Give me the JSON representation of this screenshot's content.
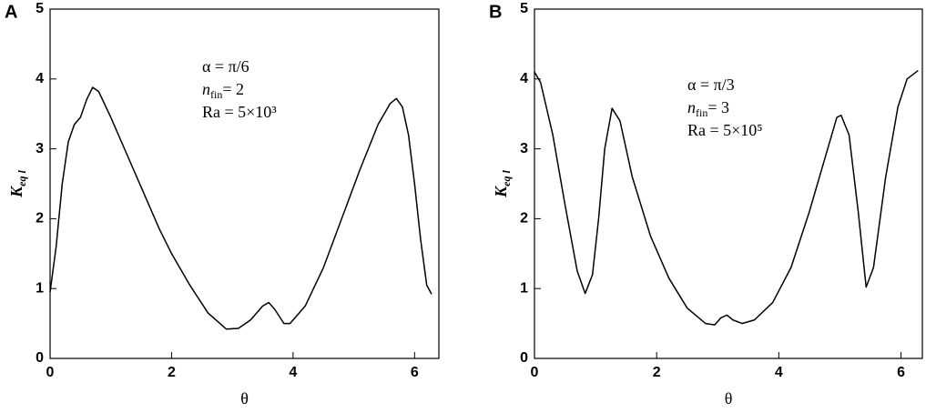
{
  "chart_data": [
    {
      "type": "line",
      "panel": "A",
      "color": "#000000",
      "annotations": [
        "α = π/6",
        {
          "main": "n",
          "sub": "fin",
          "rest": "= 2"
        },
        "Ra = 5×10³"
      ],
      "x_label": "θ",
      "y_label": {
        "main": "K",
        "sub": "eq l"
      },
      "x": [
        0,
        0.1,
        0.2,
        0.3,
        0.4,
        0.5,
        0.6,
        0.7,
        0.8,
        1.0,
        1.2,
        1.5,
        1.8,
        2.0,
        2.3,
        2.6,
        2.9,
        3.1,
        3.3,
        3.5,
        3.6,
        3.7,
        3.85,
        3.95,
        4.2,
        4.5,
        4.8,
        5.1,
        5.4,
        5.6,
        5.7,
        5.8,
        5.9,
        6.0,
        6.1,
        6.2,
        6.28
      ],
      "values": [
        0.95,
        1.6,
        2.5,
        3.1,
        3.35,
        3.45,
        3.7,
        3.88,
        3.82,
        3.45,
        3.05,
        2.45,
        1.85,
        1.5,
        1.05,
        0.65,
        0.42,
        0.43,
        0.55,
        0.75,
        0.8,
        0.7,
        0.5,
        0.5,
        0.75,
        1.3,
        2.0,
        2.7,
        3.35,
        3.65,
        3.72,
        3.6,
        3.2,
        2.5,
        1.7,
        1.05,
        0.92
      ],
      "xlim": [
        0,
        6.4
      ],
      "xticks": [
        0,
        2,
        4,
        6
      ],
      "ylim": [
        0,
        5
      ],
      "yticks": [
        0,
        1,
        2,
        3,
        4,
        5
      ]
    },
    {
      "type": "line",
      "panel": "B",
      "color": "#000000",
      "annotations": [
        "α = π/3",
        {
          "main": "n",
          "sub": "fin",
          "rest": "= 3"
        },
        "Ra = 5×10⁵"
      ],
      "x_label": "θ",
      "y_label": {
        "main": "K",
        "sub": "eq l"
      },
      "x": [
        0,
        0.1,
        0.3,
        0.5,
        0.7,
        0.83,
        0.95,
        1.05,
        1.15,
        1.27,
        1.4,
        1.6,
        1.9,
        2.2,
        2.5,
        2.8,
        2.95,
        3.05,
        3.15,
        3.25,
        3.4,
        3.6,
        3.9,
        4.2,
        4.5,
        4.8,
        4.95,
        5.02,
        5.15,
        5.3,
        5.43,
        5.55,
        5.75,
        5.95,
        6.1,
        6.28
      ],
      "values": [
        4.1,
        3.95,
        3.2,
        2.2,
        1.25,
        0.93,
        1.2,
        2.0,
        3.0,
        3.58,
        3.4,
        2.6,
        1.75,
        1.15,
        0.72,
        0.5,
        0.48,
        0.58,
        0.62,
        0.55,
        0.5,
        0.55,
        0.8,
        1.3,
        2.1,
        3.0,
        3.45,
        3.48,
        3.2,
        2.1,
        1.02,
        1.3,
        2.6,
        3.6,
        4.0,
        4.12
      ],
      "xlim": [
        0,
        6.35
      ],
      "xticks": [
        0,
        2,
        4,
        6
      ],
      "ylim": [
        0,
        5
      ],
      "yticks": [
        0,
        1,
        2,
        3,
        4,
        5
      ]
    }
  ]
}
